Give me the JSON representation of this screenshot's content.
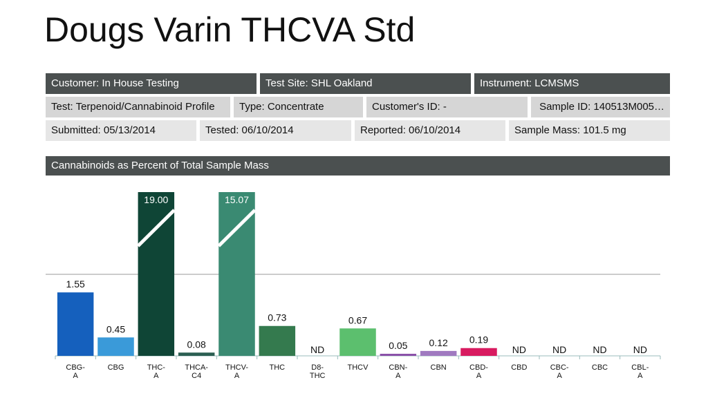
{
  "title": "Dougs Varin THCVA Std",
  "info": [
    [
      "Customer: In House Testing",
      "Test Site: SHL Oakland",
      "Instrument: LCMSMS"
    ],
    [
      "Test: Terpenoid/Cannabinoid Profile",
      "Type: Concentrate",
      "Customer's ID: -",
      "Sample ID: 140513M005…"
    ],
    [
      "Submitted: 05/13/2014",
      "Tested: 06/10/2014",
      "Reported: 06/10/2014",
      "Sample Mass: 101.5 mg"
    ]
  ],
  "chart_data": {
    "type": "bar",
    "title": "Cannabinoids as Percent of Total Sample Mass",
    "categories": [
      "CBG-\nA",
      "CBG",
      "THC-\nA",
      "THCA-\nC4",
      "THCV-\nA",
      "THC",
      "D8-\nTHC",
      "THCV",
      "CBN-\nA",
      "CBN",
      "CBD-\nA",
      "CBD",
      "CBC-\nA",
      "CBC",
      "CBL-\nA"
    ],
    "values": [
      1.55,
      0.45,
      19.0,
      0.08,
      15.07,
      0.73,
      null,
      0.67,
      0.05,
      0.12,
      0.19,
      null,
      null,
      null,
      null
    ],
    "value_labels": [
      "1.55",
      "0.45",
      "19.00",
      "0.08",
      "15.07",
      "0.73",
      "ND",
      "0.67",
      "0.05",
      "0.12",
      "0.19",
      "ND",
      "ND",
      "ND",
      "ND"
    ],
    "colors": [
      "#1560bd",
      "#3a9ad9",
      "#0f4536",
      "#2b5e52",
      "#3a8a72",
      "#347a4e",
      "#347a4e",
      "#5cbf6e",
      "#8a4fa8",
      "#a07ac0",
      "#d81b60",
      "#888888",
      "#888888",
      "#888888",
      "#888888"
    ],
    "ylim": [
      0,
      4
    ]
  }
}
